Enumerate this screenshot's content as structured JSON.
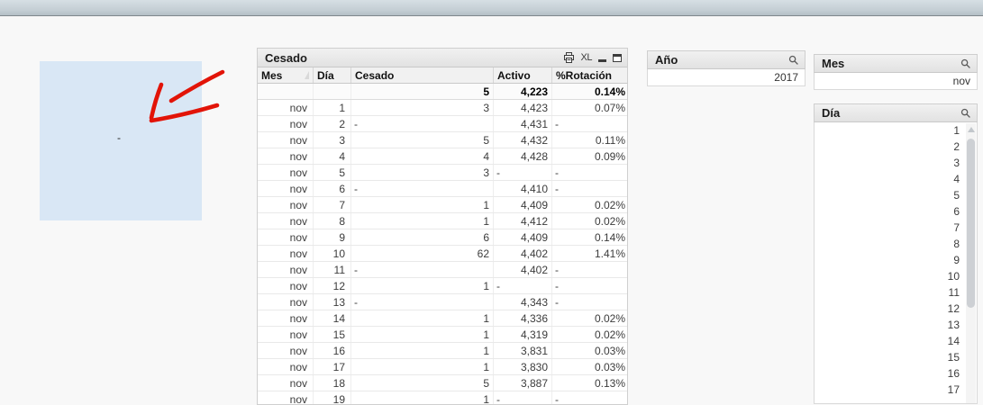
{
  "annotation": {
    "dash": "-",
    "box_color": "#d9e7f5",
    "arrow_color": "#e21408"
  },
  "table": {
    "title": "Cesado",
    "excel_label": "XL",
    "columns": [
      "Mes",
      "Día",
      "Cesado",
      "Activo",
      "%Rotación"
    ],
    "totals": {
      "mes": "",
      "dia": "",
      "cesado": "5",
      "activo": "4,223",
      "rotacion": "0.14%"
    },
    "rows": [
      {
        "mes": "nov",
        "dia": "1",
        "cesado": "3",
        "activo": "4,423",
        "rotacion": "0.07%"
      },
      {
        "mes": "nov",
        "dia": "2",
        "cesado": "-",
        "activo": "4,431",
        "rotacion": "-"
      },
      {
        "mes": "nov",
        "dia": "3",
        "cesado": "5",
        "activo": "4,432",
        "rotacion": "0.11%"
      },
      {
        "mes": "nov",
        "dia": "4",
        "cesado": "4",
        "activo": "4,428",
        "rotacion": "0.09%"
      },
      {
        "mes": "nov",
        "dia": "5",
        "cesado": "3",
        "activo": "-",
        "rotacion": "-"
      },
      {
        "mes": "nov",
        "dia": "6",
        "cesado": "-",
        "activo": "4,410",
        "rotacion": "-"
      },
      {
        "mes": "nov",
        "dia": "7",
        "cesado": "1",
        "activo": "4,409",
        "rotacion": "0.02%"
      },
      {
        "mes": "nov",
        "dia": "8",
        "cesado": "1",
        "activo": "4,412",
        "rotacion": "0.02%"
      },
      {
        "mes": "nov",
        "dia": "9",
        "cesado": "6",
        "activo": "4,409",
        "rotacion": "0.14%"
      },
      {
        "mes": "nov",
        "dia": "10",
        "cesado": "62",
        "activo": "4,402",
        "rotacion": "1.41%"
      },
      {
        "mes": "nov",
        "dia": "11",
        "cesado": "-",
        "activo": "4,402",
        "rotacion": "-"
      },
      {
        "mes": "nov",
        "dia": "12",
        "cesado": "1",
        "activo": "-",
        "rotacion": "-"
      },
      {
        "mes": "nov",
        "dia": "13",
        "cesado": "-",
        "activo": "4,343",
        "rotacion": "-"
      },
      {
        "mes": "nov",
        "dia": "14",
        "cesado": "1",
        "activo": "4,336",
        "rotacion": "0.02%"
      },
      {
        "mes": "nov",
        "dia": "15",
        "cesado": "1",
        "activo": "4,319",
        "rotacion": "0.02%"
      },
      {
        "mes": "nov",
        "dia": "16",
        "cesado": "1",
        "activo": "3,831",
        "rotacion": "0.03%"
      },
      {
        "mes": "nov",
        "dia": "17",
        "cesado": "1",
        "activo": "3,830",
        "rotacion": "0.03%"
      },
      {
        "mes": "nov",
        "dia": "18",
        "cesado": "5",
        "activo": "3,887",
        "rotacion": "0.13%"
      },
      {
        "mes": "nov",
        "dia": "19",
        "cesado": "1",
        "activo": "-",
        "rotacion": "-"
      }
    ]
  },
  "filters": {
    "ano": {
      "title": "Año",
      "value": "2017"
    },
    "mes": {
      "title": "Mes",
      "value": "nov"
    },
    "dia": {
      "title": "Día",
      "values": [
        "1",
        "2",
        "3",
        "4",
        "5",
        "6",
        "7",
        "8",
        "9",
        "10",
        "11",
        "12",
        "13",
        "14",
        "15",
        "16",
        "17"
      ]
    }
  }
}
